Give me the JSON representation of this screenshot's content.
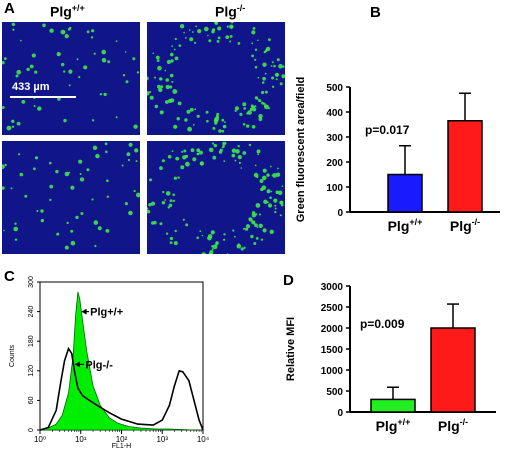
{
  "panel_letters": {
    "a": "A",
    "b": "B",
    "c": "C",
    "d": "D"
  },
  "panel_a": {
    "col_left_label": "Plg",
    "col_left_sup": "+/+",
    "col_right_label": "Plg",
    "col_right_sup": "-/-",
    "scale_bar_label": "433 µm",
    "image_bg_color": "#11158a",
    "spot_color": "#3ee84a"
  },
  "chart_data": [
    {
      "id": "B",
      "type": "bar",
      "categories": [
        "Plg+/+",
        "Plg-/-"
      ],
      "category_labels": [
        {
          "base": "Plg",
          "sup": "+/+"
        },
        {
          "base": "Plg",
          "sup": "-/-"
        }
      ],
      "values": [
        150,
        365
      ],
      "errors": [
        115,
        110
      ],
      "colors": [
        "#1a1aff",
        "#ff1a1a"
      ],
      "ylabel": "Green fluorescent area/field",
      "ylim": [
        0,
        500
      ],
      "yticks": [
        0,
        100,
        200,
        300,
        400,
        500
      ],
      "annotation": "p=0.017"
    },
    {
      "id": "C",
      "type": "line",
      "xscale": "log",
      "xlabel": "FL1-H",
      "ylabel": "Counts",
      "xlim": [
        1,
        10000
      ],
      "ylim": [
        0,
        300
      ],
      "xtick_labels": [
        "10⁰",
        "10¹",
        "10²",
        "10³",
        "10⁴"
      ],
      "yticks": [
        0,
        60,
        120,
        180,
        240,
        300
      ],
      "series": [
        {
          "name": "Plg+/+",
          "fill": "#00ee00",
          "x": [
            1,
            1.6,
            2.5,
            3.5,
            5,
            6.5,
            7.5,
            8.5,
            9.5,
            11,
            14,
            20,
            30,
            50,
            80,
            150,
            300,
            700,
            1500,
            3000,
            6000,
            10000
          ],
          "y": [
            0,
            4,
            12,
            30,
            75,
            150,
            235,
            280,
            265,
            225,
            160,
            90,
            50,
            25,
            14,
            7,
            4,
            2,
            2,
            1,
            0,
            0
          ]
        },
        {
          "name": "Plg-/-",
          "fill": "none",
          "x": [
            1,
            1.6,
            2.5,
            3.2,
            4,
            5,
            6,
            7,
            8.5,
            11,
            15,
            25,
            50,
            100,
            250,
            600,
            1000,
            1500,
            2000,
            2600,
            3200,
            4500,
            6000,
            8000,
            10000
          ],
          "y": [
            0,
            5,
            40,
            95,
            140,
            165,
            155,
            120,
            85,
            70,
            62,
            50,
            35,
            22,
            12,
            10,
            20,
            50,
            90,
            120,
            118,
            100,
            60,
            20,
            0
          ]
        }
      ],
      "legend_labels": [
        "Plg+/+",
        "Plg-/-"
      ]
    },
    {
      "id": "D",
      "type": "bar",
      "categories": [
        "Plg+/+",
        "Plg-/-"
      ],
      "category_labels": [
        {
          "base": "Plg",
          "sup": "+/+"
        },
        {
          "base": "Plg",
          "sup": "-/-"
        }
      ],
      "values": [
        300,
        2000
      ],
      "errors": [
        290,
        570
      ],
      "colors": [
        "#22ee22",
        "#ff1a1a"
      ],
      "ylabel": "Relative MFI",
      "ylim": [
        0,
        3000
      ],
      "yticks": [
        0,
        500,
        1000,
        1500,
        2000,
        2500,
        3000
      ],
      "annotation": "p=0.009"
    }
  ]
}
